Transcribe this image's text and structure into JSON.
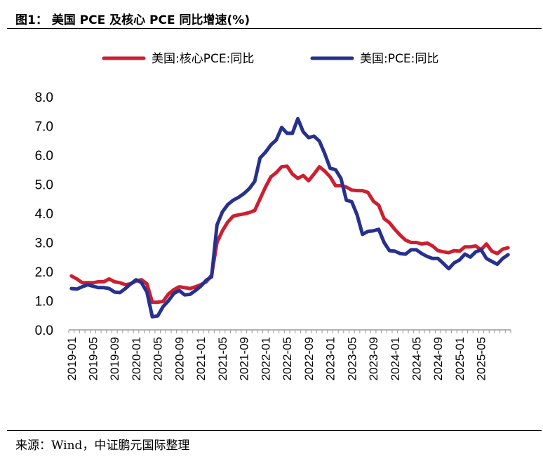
{
  "header": {
    "title": "图1： 美国 PCE 及核心 PCE 同比增速(%)"
  },
  "footer": {
    "source": "来源：Wind，中证鹏元国际整理"
  },
  "colors": {
    "core": "#cc1f30",
    "headline": "#26318e",
    "axis": "#9a9a9a"
  },
  "chart_data": {
    "type": "line",
    "title": "",
    "xlabel": "",
    "ylabel": "",
    "ylim": [
      0,
      8
    ],
    "yticks": [
      "0.0",
      "1.0",
      "2.0",
      "3.0",
      "4.0",
      "5.0",
      "6.0",
      "7.0",
      "8.0"
    ],
    "xtick_labels": [
      "2019-01",
      "2019-05",
      "2019-09",
      "2020-01",
      "2020-05",
      "2020-09",
      "2021-01",
      "2021-05",
      "2021-09",
      "2022-01",
      "2022-05",
      "2022-09",
      "2023-01",
      "2023-05",
      "2023-09",
      "2024-01",
      "2024-05",
      "2024-09",
      "2025-01",
      "2025-05"
    ],
    "x_start": "2019-01",
    "x_end": "2025-06",
    "legend_position": "top-center",
    "grid": false,
    "series": [
      {
        "name": "美国:核心PCE:同比",
        "color": "#cc1f30",
        "values": [
          1.85,
          1.75,
          1.62,
          1.62,
          1.62,
          1.65,
          1.65,
          1.75,
          1.65,
          1.62,
          1.55,
          1.58,
          1.68,
          1.72,
          1.58,
          0.95,
          0.95,
          0.98,
          1.23,
          1.38,
          1.48,
          1.45,
          1.42,
          1.48,
          1.55,
          1.65,
          1.88,
          3.0,
          3.4,
          3.7,
          3.9,
          3.95,
          3.98,
          4.03,
          4.1,
          4.5,
          4.9,
          5.25,
          5.4,
          5.6,
          5.62,
          5.35,
          5.2,
          5.3,
          5.12,
          5.35,
          5.6,
          5.45,
          5.25,
          4.95,
          4.95,
          4.9,
          4.8,
          4.78,
          4.78,
          4.72,
          4.42,
          4.28,
          3.82,
          3.68,
          3.45,
          3.25,
          3.08,
          3.0,
          3.0,
          2.95,
          2.98,
          2.88,
          2.72,
          2.68,
          2.65,
          2.72,
          2.7,
          2.85,
          2.85,
          2.88,
          2.75,
          2.95,
          2.7,
          2.62,
          2.77,
          2.82
        ]
      },
      {
        "name": "美国:PCE:同比",
        "color": "#26318e",
        "values": [
          1.42,
          1.4,
          1.48,
          1.55,
          1.5,
          1.45,
          1.45,
          1.42,
          1.3,
          1.28,
          1.42,
          1.58,
          1.72,
          1.62,
          1.3,
          0.45,
          0.48,
          0.8,
          1.0,
          1.25,
          1.35,
          1.2,
          1.22,
          1.35,
          1.5,
          1.7,
          1.82,
          3.6,
          4.05,
          4.3,
          4.45,
          4.55,
          4.68,
          4.85,
          5.1,
          5.9,
          6.1,
          6.35,
          6.52,
          6.95,
          6.75,
          6.75,
          7.25,
          6.8,
          6.6,
          6.65,
          6.48,
          6.05,
          5.55,
          5.5,
          5.2,
          4.45,
          4.4,
          3.95,
          3.28,
          3.38,
          3.4,
          3.45,
          3.0,
          2.72,
          2.7,
          2.62,
          2.6,
          2.75,
          2.75,
          2.62,
          2.52,
          2.45,
          2.45,
          2.28,
          2.1,
          2.3,
          2.4,
          2.6,
          2.5,
          2.68,
          2.75,
          2.45,
          2.35,
          2.25,
          2.45,
          2.58
        ]
      }
    ]
  }
}
